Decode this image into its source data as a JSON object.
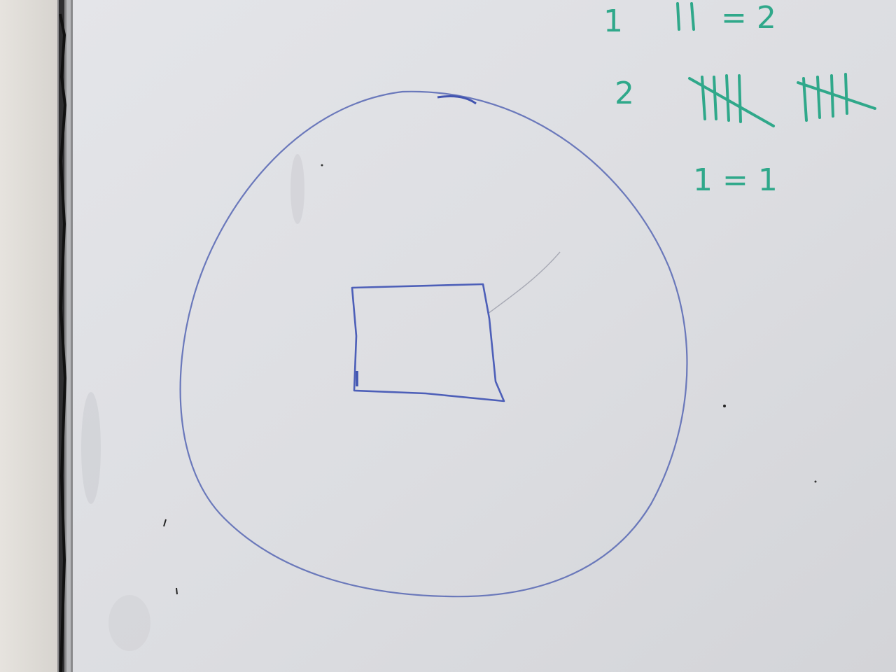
{
  "colors": {
    "wall": "#e0ddd8",
    "board": "#dddee2",
    "frame": "#2b2b2b",
    "blue_marker": "#5566b8",
    "green_marker": "#2fa88a"
  },
  "tally_notes": [
    {
      "label": "1",
      "equation": "= 2"
    },
    {
      "label": "2",
      "equation": ""
    },
    {
      "label": "",
      "equation": "1 = 1"
    }
  ]
}
